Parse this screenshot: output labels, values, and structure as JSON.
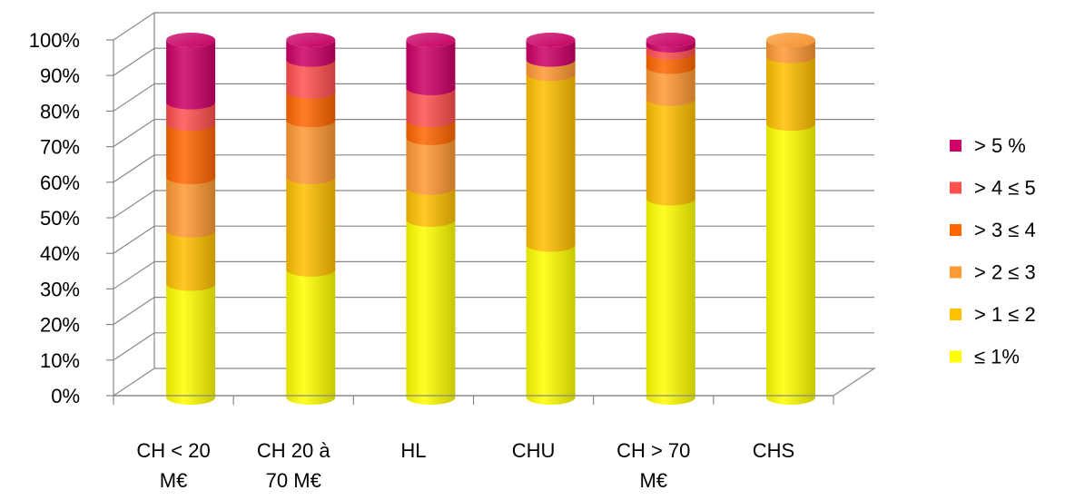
{
  "chart_data": {
    "type": "bar",
    "stacked": true,
    "percent_stacked": true,
    "three_d": true,
    "legend_position": "right",
    "grid": true,
    "ylim": [
      0,
      100
    ],
    "y_ticks": [
      "0%",
      "10%",
      "20%",
      "30%",
      "40%",
      "50%",
      "60%",
      "70%",
      "80%",
      "90%",
      "100%"
    ],
    "categories": [
      [
        "CH < 20",
        "M€"
      ],
      [
        "CH 20 à",
        "70 M€"
      ],
      [
        "HL"
      ],
      [
        "CHU"
      ],
      [
        "CH > 70",
        "M€"
      ],
      [
        "CHS"
      ]
    ],
    "series": [
      {
        "name": "≤ 1%",
        "color": "#ffff00",
        "values": [
          32,
          36,
          50,
          43,
          56,
          77
        ]
      },
      {
        "name": "> 1 ≤ 2",
        "color": "#ffc000",
        "values": [
          15,
          26,
          9,
          48,
          28,
          19
        ]
      },
      {
        "name": "> 2 ≤ 3",
        "color": "#ff9933",
        "values": [
          15,
          16,
          14,
          4,
          9,
          4
        ]
      },
      {
        "name": "> 3 ≤ 4",
        "color": "#ff6600",
        "values": [
          15,
          8,
          5,
          0,
          4,
          0
        ]
      },
      {
        "name": "> 4 ≤ 5",
        "color": "#ff5050",
        "values": [
          6,
          9,
          9,
          0,
          2,
          0
        ]
      },
      {
        "name": ">  5 %",
        "color": "#cc0066",
        "values": [
          17,
          5,
          13,
          5,
          1,
          0
        ]
      }
    ]
  }
}
